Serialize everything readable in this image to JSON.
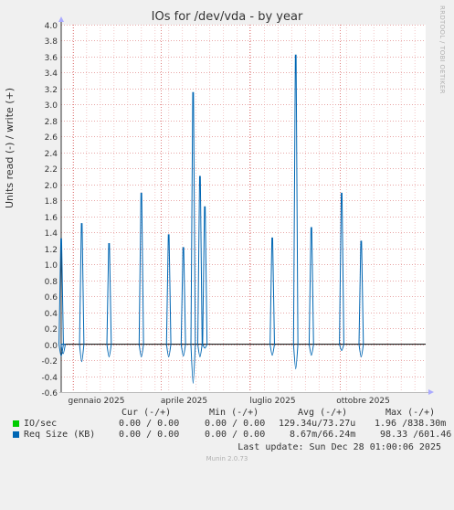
{
  "title": "IOs for /dev/vda - by year",
  "watermark": "RRDTOOL / TOBI OETIKER",
  "footer": "Munin 2.0.73",
  "legend": {
    "headers": [
      "Cur (-/+)",
      "Min (-/+)",
      "Avg (-/+)",
      "Max (-/+)"
    ],
    "rows": [
      {
        "name": "IO/sec",
        "color": "#00cc00",
        "cur": "0.00 / 0.00",
        "min": "0.00 / 0.00",
        "avg": "129.34u/73.27u",
        "max": "1.96 /838.30m"
      },
      {
        "name": "Req Size (KB)",
        "color": "#0066b3",
        "cur": "0.00 / 0.00",
        "min": "0.00 / 0.00",
        "avg": "8.67m/66.24m",
        "max": "98.33 /601.46"
      }
    ],
    "last_update": "Last update: Sun Dec 28 01:00:06 2025"
  },
  "chart_data": {
    "type": "line",
    "title": "IOs for /dev/vda - by year",
    "ylabel": "Units read (-) / write (+)",
    "xlabel": "",
    "ylim": [
      -0.6,
      4.0
    ],
    "yticks": [
      "-0.6",
      "-0.4",
      "-0.2",
      "0.0",
      "0.2",
      "0.4",
      "0.6",
      "0.8",
      "1.0",
      "1.2",
      "1.4",
      "1.6",
      "1.8",
      "2.0",
      "2.2",
      "2.4",
      "2.6",
      "2.8",
      "3.0",
      "3.2",
      "3.4",
      "3.6",
      "3.8",
      "4.0"
    ],
    "x_range": [
      "2024-12-20",
      "2025-12-28"
    ],
    "xticks": [
      {
        "date": "2025-01-01",
        "label": "gennaio 2025"
      },
      {
        "date": "2025-04-01",
        "label": "aprile 2025"
      },
      {
        "date": "2025-07-01",
        "label": "luglio 2025"
      },
      {
        "date": "2025-10-01",
        "label": "ottobre 2025"
      }
    ],
    "series": [
      {
        "name": "Req Size (KB)",
        "color": "#0066b3",
        "spikes": [
          {
            "date": "2024-12-20",
            "up": 1.32,
            "down": -0.15
          },
          {
            "date": "2024-12-22",
            "up": 0.0,
            "down": -0.12
          },
          {
            "date": "2025-01-10",
            "up": 1.51,
            "down": -0.22
          },
          {
            "date": "2025-02-07",
            "up": 1.26,
            "down": -0.16
          },
          {
            "date": "2025-03-12",
            "up": 1.89,
            "down": -0.16
          },
          {
            "date": "2025-04-09",
            "up": 1.37,
            "down": -0.16
          },
          {
            "date": "2025-04-24",
            "up": 1.21,
            "down": -0.15
          },
          {
            "date": "2025-05-04",
            "up": 3.15,
            "down": -0.49
          },
          {
            "date": "2025-05-11",
            "up": 2.1,
            "down": -0.16
          },
          {
            "date": "2025-05-16",
            "up": 1.72,
            "down": -0.05
          },
          {
            "date": "2025-07-24",
            "up": 1.33,
            "down": -0.14
          },
          {
            "date": "2025-08-17",
            "up": 3.62,
            "down": -0.31
          },
          {
            "date": "2025-09-02",
            "up": 1.46,
            "down": -0.14
          },
          {
            "date": "2025-10-03",
            "up": 1.89,
            "down": -0.08
          },
          {
            "date": "2025-10-23",
            "up": 1.29,
            "down": -0.16
          }
        ]
      },
      {
        "name": "IO/sec",
        "color": "#00cc00",
        "spikes": []
      }
    ]
  }
}
